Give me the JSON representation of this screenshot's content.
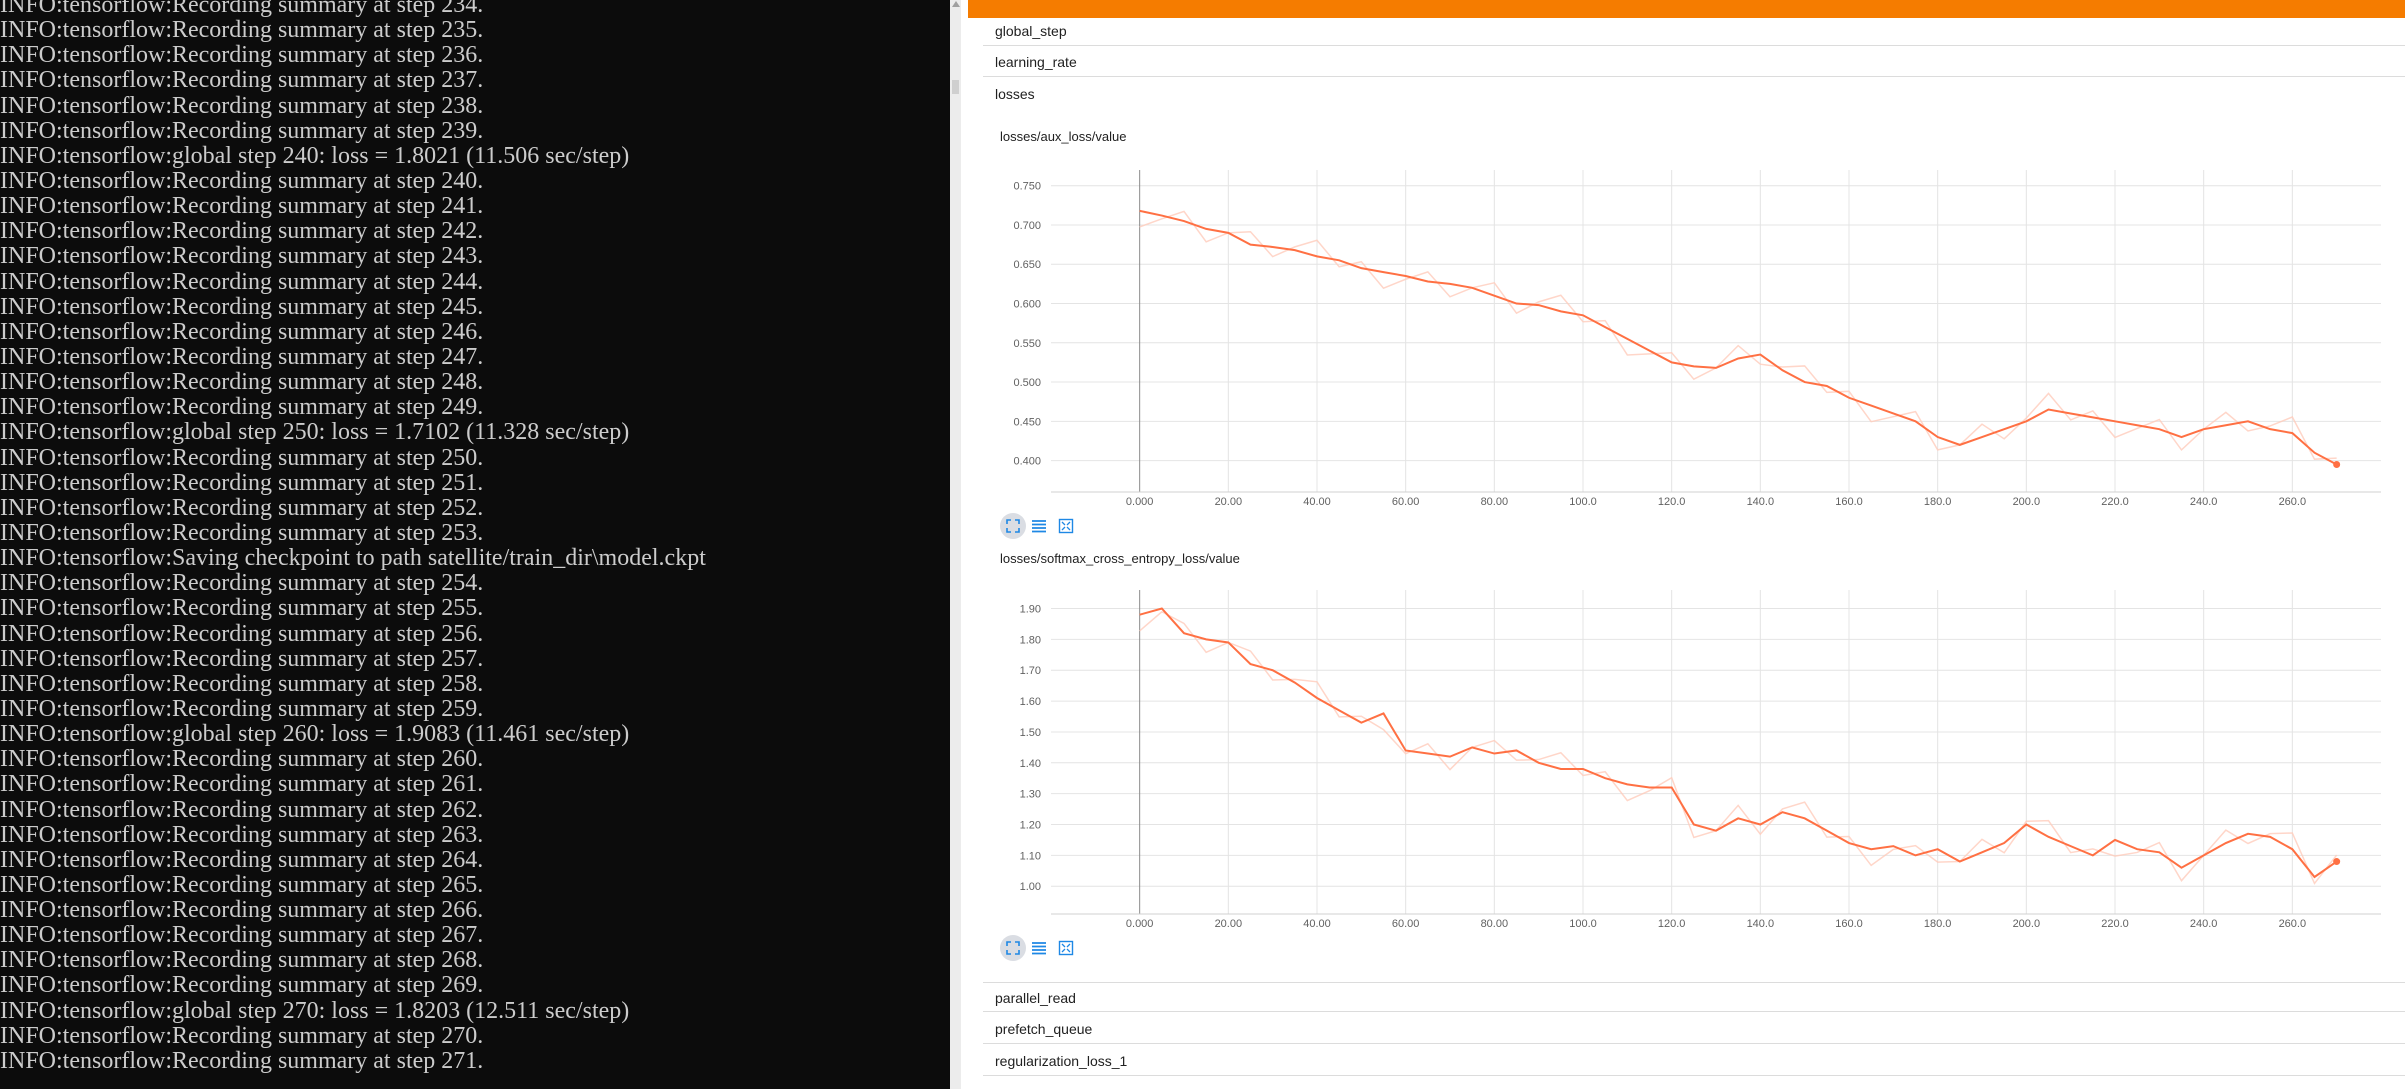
{
  "terminal": {
    "lines": [
      "INFO:tensorflow:Recording summary at step 234.",
      "INFO:tensorflow:Recording summary at step 235.",
      "INFO:tensorflow:Recording summary at step 236.",
      "INFO:tensorflow:Recording summary at step 237.",
      "INFO:tensorflow:Recording summary at step 238.",
      "INFO:tensorflow:Recording summary at step 239.",
      "INFO:tensorflow:global step 240: loss = 1.8021 (11.506 sec/step)",
      "INFO:tensorflow:Recording summary at step 240.",
      "INFO:tensorflow:Recording summary at step 241.",
      "INFO:tensorflow:Recording summary at step 242.",
      "INFO:tensorflow:Recording summary at step 243.",
      "INFO:tensorflow:Recording summary at step 244.",
      "INFO:tensorflow:Recording summary at step 245.",
      "INFO:tensorflow:Recording summary at step 246.",
      "INFO:tensorflow:Recording summary at step 247.",
      "INFO:tensorflow:Recording summary at step 248.",
      "INFO:tensorflow:Recording summary at step 249.",
      "INFO:tensorflow:global step 250: loss = 1.7102 (11.328 sec/step)",
      "INFO:tensorflow:Recording summary at step 250.",
      "INFO:tensorflow:Recording summary at step 251.",
      "INFO:tensorflow:Recording summary at step 252.",
      "INFO:tensorflow:Recording summary at step 253.",
      "INFO:tensorflow:Saving checkpoint to path satellite/train_dir\\model.ckpt",
      "INFO:tensorflow:Recording summary at step 254.",
      "INFO:tensorflow:Recording summary at step 255.",
      "INFO:tensorflow:Recording summary at step 256.",
      "INFO:tensorflow:Recording summary at step 257.",
      "INFO:tensorflow:Recording summary at step 258.",
      "INFO:tensorflow:Recording summary at step 259.",
      "INFO:tensorflow:global step 260: loss = 1.9083 (11.461 sec/step)",
      "INFO:tensorflow:Recording summary at step 260.",
      "INFO:tensorflow:Recording summary at step 261.",
      "INFO:tensorflow:Recording summary at step 262.",
      "INFO:tensorflow:Recording summary at step 263.",
      "INFO:tensorflow:Recording summary at step 264.",
      "INFO:tensorflow:Recording summary at step 265.",
      "INFO:tensorflow:Recording summary at step 266.",
      "INFO:tensorflow:Recording summary at step 267.",
      "INFO:tensorflow:Recording summary at step 268.",
      "INFO:tensorflow:Recording summary at step 269.",
      "INFO:tensorflow:global step 270: loss = 1.8203 (12.511 sec/step)",
      "INFO:tensorflow:Recording summary at step 270.",
      "INFO:tensorflow:Recording summary at step 271."
    ]
  },
  "tensorboard": {
    "groups_top": [
      "global_step",
      "learning_rate",
      "losses"
    ],
    "groups_bottom": [
      "parallel_read",
      "prefetch_queue",
      "regularization_loss_1"
    ],
    "accent_color": "#f57c00",
    "series_color": "#ff7043"
  },
  "chart_data": [
    {
      "type": "line",
      "title": "losses/aux_loss/value",
      "xticks": [
        "0.000",
        "20.00",
        "40.00",
        "60.00",
        "80.00",
        "100.0",
        "120.0",
        "140.0",
        "160.0",
        "180.0",
        "200.0",
        "220.0",
        "240.0",
        "260.0"
      ],
      "yticks": [
        "0.400",
        "0.450",
        "0.500",
        "0.550",
        "0.600",
        "0.650",
        "0.700",
        "0.750"
      ],
      "xlim": [
        -20,
        280
      ],
      "ylim": [
        0.36,
        0.77
      ],
      "series": [
        {
          "x": [
            0,
            5,
            10,
            15,
            20,
            25,
            30,
            35,
            40,
            45,
            50,
            55,
            60,
            65,
            70,
            75,
            80,
            85,
            90,
            95,
            100,
            105,
            110,
            115,
            120,
            125,
            130,
            135,
            140,
            145,
            150,
            155,
            160,
            165,
            170,
            175,
            180,
            185,
            190,
            195,
            200,
            205,
            210,
            215,
            220,
            225,
            230,
            235,
            240,
            245,
            250,
            255,
            260,
            265,
            270
          ],
          "y": [
            0.718,
            0.712,
            0.705,
            0.695,
            0.69,
            0.675,
            0.672,
            0.668,
            0.66,
            0.655,
            0.645,
            0.64,
            0.635,
            0.628,
            0.625,
            0.62,
            0.61,
            0.6,
            0.598,
            0.59,
            0.585,
            0.57,
            0.555,
            0.54,
            0.525,
            0.52,
            0.518,
            0.53,
            0.535,
            0.515,
            0.5,
            0.495,
            0.48,
            0.47,
            0.46,
            0.45,
            0.43,
            0.42,
            0.43,
            0.44,
            0.45,
            0.465,
            0.46,
            0.455,
            0.45,
            0.445,
            0.44,
            0.43,
            0.44,
            0.445,
            0.45,
            0.44,
            0.435,
            0.41,
            0.395
          ]
        }
      ]
    },
    {
      "type": "line",
      "title": "losses/softmax_cross_entropy_loss/value",
      "xticks": [
        "0.000",
        "20.00",
        "40.00",
        "60.00",
        "80.00",
        "100.0",
        "120.0",
        "140.0",
        "160.0",
        "180.0",
        "200.0",
        "220.0",
        "240.0",
        "260.0"
      ],
      "yticks": [
        "1.00",
        "1.10",
        "1.20",
        "1.30",
        "1.40",
        "1.50",
        "1.60",
        "1.70",
        "1.80",
        "1.90"
      ],
      "xlim": [
        -20,
        280
      ],
      "ylim": [
        0.91,
        1.96
      ],
      "series": [
        {
          "x": [
            0,
            5,
            10,
            15,
            20,
            25,
            30,
            35,
            40,
            45,
            50,
            55,
            60,
            65,
            70,
            75,
            80,
            85,
            90,
            95,
            100,
            105,
            110,
            115,
            120,
            125,
            130,
            135,
            140,
            145,
            150,
            155,
            160,
            165,
            170,
            175,
            180,
            185,
            190,
            195,
            200,
            205,
            210,
            215,
            220,
            225,
            230,
            235,
            240,
            245,
            250,
            255,
            260,
            265,
            270
          ],
          "y": [
            1.88,
            1.9,
            1.82,
            1.8,
            1.79,
            1.72,
            1.7,
            1.66,
            1.61,
            1.57,
            1.53,
            1.56,
            1.44,
            1.43,
            1.42,
            1.45,
            1.43,
            1.44,
            1.4,
            1.38,
            1.38,
            1.35,
            1.33,
            1.32,
            1.32,
            1.2,
            1.18,
            1.22,
            1.2,
            1.24,
            1.22,
            1.18,
            1.14,
            1.12,
            1.13,
            1.1,
            1.12,
            1.08,
            1.11,
            1.14,
            1.2,
            1.16,
            1.13,
            1.1,
            1.15,
            1.12,
            1.11,
            1.06,
            1.1,
            1.14,
            1.17,
            1.16,
            1.12,
            1.03,
            1.08
          ]
        }
      ]
    }
  ]
}
